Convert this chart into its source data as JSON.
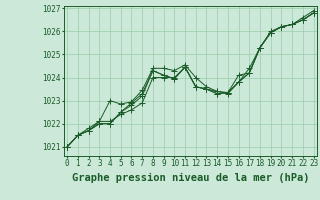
{
  "background_color": "#cce8d8",
  "plot_bg_color": "#cce8d8",
  "grid_color": "#99ccaa",
  "line_color": "#1a5c28",
  "marker_color": "#1a5c28",
  "title": "Graphe pression niveau de la mer (hPa)",
  "ylim": [
    1020.6,
    1027.1
  ],
  "xlim": [
    -0.3,
    23.3
  ],
  "yticks": [
    1021,
    1022,
    1023,
    1024,
    1025,
    1026,
    1027
  ],
  "xticks": [
    0,
    1,
    2,
    3,
    4,
    5,
    6,
    7,
    8,
    9,
    10,
    11,
    12,
    13,
    14,
    15,
    16,
    17,
    18,
    19,
    20,
    21,
    22,
    23
  ],
  "series": [
    [
      1021.0,
      1021.5,
      1021.7,
      1022.0,
      1022.0,
      1022.5,
      1022.9,
      1023.3,
      1024.3,
      1024.1,
      1023.95,
      1024.45,
      1023.6,
      1023.5,
      1023.3,
      1023.35,
      1023.8,
      1024.2,
      1025.3,
      1025.95,
      1026.2,
      1026.3,
      1026.5,
      1026.8
    ],
    [
      1021.0,
      1021.5,
      1021.8,
      1022.1,
      1023.0,
      1022.85,
      1022.95,
      1023.45,
      1024.4,
      1024.4,
      1024.3,
      1024.55,
      1024.0,
      1023.6,
      1023.4,
      1023.3,
      1023.8,
      1024.4,
      1025.3,
      1026.0,
      1026.2,
      1026.3,
      1026.6,
      1026.9
    ],
    [
      1021.0,
      1021.5,
      1021.7,
      1022.0,
      1022.0,
      1022.5,
      1022.8,
      1023.2,
      1024.3,
      1024.1,
      1023.95,
      1024.45,
      1023.6,
      1023.5,
      1023.3,
      1023.35,
      1023.8,
      1024.2,
      1025.3,
      1025.95,
      1026.2,
      1026.3,
      1026.5,
      1026.8
    ],
    [
      1021.0,
      1021.5,
      1021.7,
      1022.1,
      1022.1,
      1022.4,
      1022.6,
      1022.9,
      1024.0,
      1024.0,
      1024.0,
      1024.45,
      1023.6,
      1023.5,
      1023.4,
      1023.35,
      1024.1,
      1024.2,
      1025.3,
      1025.95,
      1026.2,
      1026.3,
      1026.5,
      1026.8
    ]
  ],
  "title_fontsize": 7.5,
  "tick_fontsize": 5.5,
  "marker_size": 2.0,
  "line_width": 0.7
}
